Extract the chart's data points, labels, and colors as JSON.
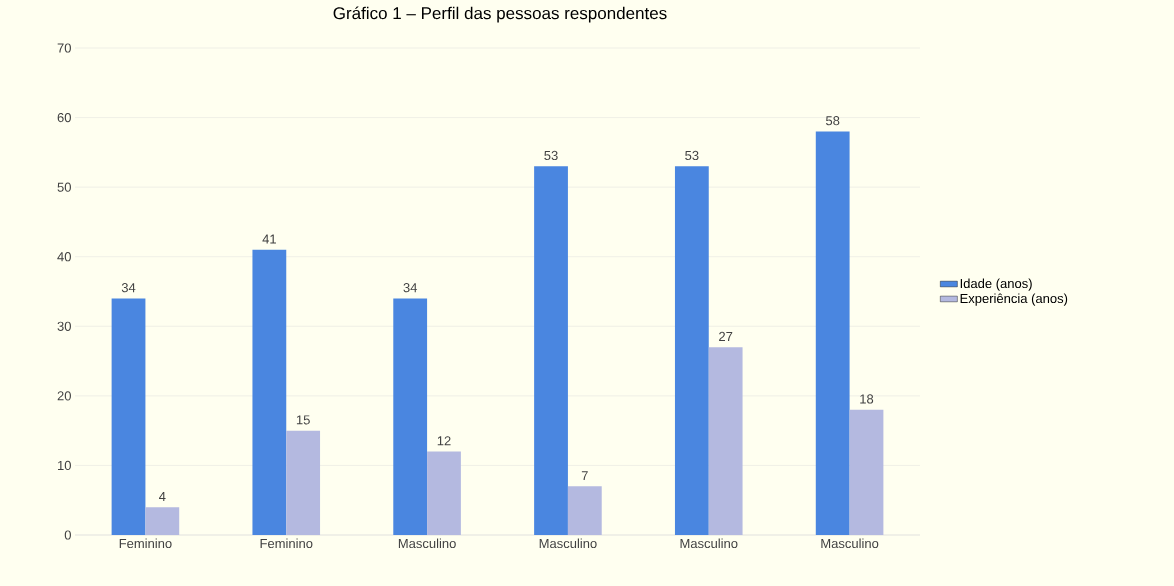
{
  "chart_data": {
    "type": "bar",
    "title": "Gráfico 1 – Perfil das pessoas respondentes",
    "categories": [
      "Feminino",
      "Feminino",
      "Masculino",
      "Masculino",
      "Masculino",
      "Masculino"
    ],
    "series": [
      {
        "name": "Idade (anos)",
        "color": "#4a86e0",
        "values": [
          34,
          41,
          34,
          53,
          53,
          58
        ]
      },
      {
        "name": "Experiência (anos)",
        "color": "#b4b9e0",
        "values": [
          4,
          15,
          12,
          7,
          27,
          18
        ]
      }
    ],
    "ylim": [
      0,
      70
    ],
    "yticks": [
      0,
      10,
      20,
      30,
      40,
      50,
      60,
      70
    ],
    "grid": "y",
    "legend": "right",
    "data_labels": true
  }
}
